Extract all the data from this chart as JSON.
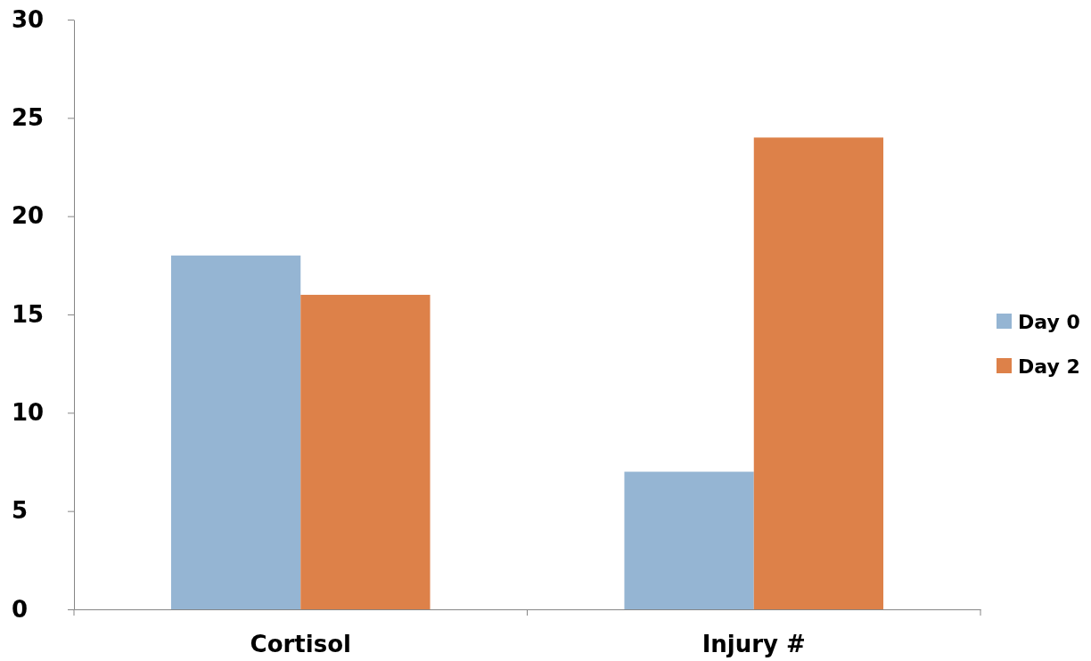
{
  "chart_data": {
    "type": "bar",
    "categories": [
      "Cortisol",
      "Injury #"
    ],
    "series": [
      {
        "name": "Day 0",
        "color": "#95b5d3",
        "values": [
          18,
          7
        ]
      },
      {
        "name": "Day 2",
        "color": "#dd8149",
        "values": [
          16,
          24
        ]
      }
    ],
    "ylim": [
      0,
      30
    ],
    "yticks": [
      0,
      5,
      10,
      15,
      20,
      25,
      30
    ],
    "grid": false,
    "legend": "right"
  }
}
